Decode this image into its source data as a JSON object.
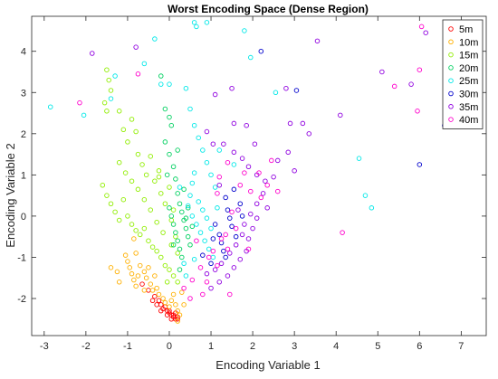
{
  "chart_data": {
    "type": "scatter",
    "title": "Worst Encoding Space (Dense Region)",
    "xlabel": "Encoding Variable 1",
    "ylabel": "Encoding Variable 2",
    "xlim": [
      -3.3,
      7.6
    ],
    "ylim": [
      -2.9,
      4.85
    ],
    "xticks": [
      -3,
      -2,
      -1,
      0,
      1,
      2,
      3,
      4,
      5,
      6,
      7
    ],
    "yticks": [
      -2,
      -1,
      0,
      1,
      2,
      3,
      4
    ],
    "grid": false,
    "legend_position": "top-right",
    "marker": "open-circle",
    "series": [
      {
        "name": "5m",
        "color": "#ff0000",
        "points": [
          [
            -0.65,
            -1.65
          ],
          [
            -0.5,
            -1.8
          ],
          [
            -0.35,
            -1.95
          ],
          [
            -0.25,
            -2.05
          ],
          [
            -0.2,
            -2.15
          ],
          [
            -0.1,
            -2.2
          ],
          [
            -0.05,
            -2.3
          ],
          [
            0.0,
            -2.35
          ],
          [
            0.05,
            -2.4
          ],
          [
            0.1,
            -2.45
          ],
          [
            0.15,
            -2.5
          ],
          [
            0.2,
            -2.5
          ],
          [
            -0.3,
            -2.15
          ],
          [
            -0.15,
            -2.25
          ],
          [
            0.0,
            -2.3
          ],
          [
            0.1,
            -2.4
          ],
          [
            0.2,
            -2.45
          ],
          [
            -0.4,
            -2.05
          ],
          [
            -0.05,
            -2.4
          ],
          [
            0.05,
            -2.5
          ],
          [
            -0.2,
            -2.3
          ],
          [
            0.15,
            -2.35
          ]
        ]
      },
      {
        "name": "10m",
        "color": "#ffb000",
        "points": [
          [
            -0.85,
            -0.55
          ],
          [
            -1.4,
            -1.25
          ],
          [
            -1.25,
            -1.35
          ],
          [
            -1.2,
            -1.6
          ],
          [
            -1.05,
            -0.95
          ],
          [
            -1.0,
            -1.1
          ],
          [
            -0.95,
            -1.25
          ],
          [
            -0.9,
            -1.4
          ],
          [
            -0.85,
            -1.55
          ],
          [
            -0.8,
            -1.7
          ],
          [
            -0.75,
            -1.45
          ],
          [
            -0.7,
            -1.2
          ],
          [
            -0.6,
            -1.35
          ],
          [
            -0.55,
            -1.5
          ],
          [
            -0.45,
            -1.65
          ],
          [
            -0.4,
            -1.8
          ],
          [
            -0.3,
            -1.75
          ],
          [
            -0.25,
            -1.9
          ],
          [
            -0.15,
            -2.0
          ],
          [
            -0.1,
            -2.1
          ],
          [
            0.0,
            -2.2
          ],
          [
            0.05,
            -2.05
          ],
          [
            0.1,
            -1.9
          ],
          [
            0.15,
            -2.15
          ],
          [
            0.2,
            -2.3
          ],
          [
            0.25,
            -2.4
          ],
          [
            0.3,
            -1.85
          ],
          [
            0.35,
            -2.15
          ],
          [
            0.2,
            -2.55
          ],
          [
            -0.6,
            -1.8
          ],
          [
            -0.35,
            -1.45
          ],
          [
            -0.5,
            -1.25
          ],
          [
            -0.8,
            -0.9
          ]
        ]
      },
      {
        "name": "15m",
        "color": "#90ee00",
        "points": [
          [
            -1.5,
            3.55
          ],
          [
            -1.45,
            3.3
          ],
          [
            -1.4,
            3.05
          ],
          [
            -1.55,
            2.75
          ],
          [
            -1.5,
            2.55
          ],
          [
            -1.2,
            2.55
          ],
          [
            -1.1,
            2.1
          ],
          [
            -1.0,
            1.8
          ],
          [
            -0.9,
            2.35
          ],
          [
            -0.8,
            2.05
          ],
          [
            -0.75,
            1.5
          ],
          [
            -0.65,
            1.25
          ],
          [
            -0.55,
            1.0
          ],
          [
            -0.45,
            1.45
          ],
          [
            -0.35,
            0.85
          ],
          [
            -0.25,
            1.1
          ],
          [
            -0.2,
            0.55
          ],
          [
            -0.1,
            0.3
          ],
          [
            0.0,
            0.7
          ],
          [
            0.05,
            -0.1
          ],
          [
            -1.6,
            0.75
          ],
          [
            -1.5,
            0.5
          ],
          [
            -1.4,
            0.3
          ],
          [
            -1.3,
            0.1
          ],
          [
            -1.2,
            -0.1
          ],
          [
            -1.1,
            0.4
          ],
          [
            -1.0,
            0.0
          ],
          [
            -0.9,
            -0.2
          ],
          [
            -0.8,
            -0.35
          ],
          [
            -0.7,
            -0.45
          ],
          [
            -0.6,
            -0.3
          ],
          [
            -0.5,
            -0.6
          ],
          [
            -0.4,
            -0.75
          ],
          [
            -0.3,
            -0.85
          ],
          [
            -0.2,
            -1.0
          ],
          [
            -0.1,
            -1.2
          ],
          [
            0.0,
            -1.3
          ],
          [
            0.1,
            -1.45
          ],
          [
            0.2,
            -1.6
          ],
          [
            0.05,
            -0.7
          ],
          [
            -0.15,
            -0.4
          ],
          [
            -0.3,
            -0.15
          ],
          [
            -0.45,
            0.15
          ],
          [
            -0.6,
            0.4
          ],
          [
            -0.75,
            0.65
          ],
          [
            -0.9,
            0.85
          ],
          [
            -1.05,
            1.05
          ],
          [
            -1.2,
            1.3
          ],
          [
            -0.25,
            0.95
          ],
          [
            0.1,
            0.15
          ],
          [
            0.15,
            -0.5
          ],
          [
            0.2,
            -0.9
          ],
          [
            -0.05,
            -1.6
          ]
        ]
      },
      {
        "name": "20m",
        "color": "#00d060",
        "points": [
          [
            -0.2,
            3.4
          ],
          [
            -0.1,
            2.6
          ],
          [
            0.0,
            2.4
          ],
          [
            0.05,
            2.2
          ],
          [
            -0.1,
            1.8
          ],
          [
            0.0,
            1.5
          ],
          [
            0.1,
            1.2
          ],
          [
            0.15,
            0.9
          ],
          [
            0.2,
            0.55
          ],
          [
            0.25,
            0.3
          ],
          [
            0.3,
            0.1
          ],
          [
            0.35,
            -0.1
          ],
          [
            0.4,
            -0.3
          ],
          [
            0.45,
            -0.5
          ],
          [
            0.5,
            -0.7
          ],
          [
            0.0,
            0.2
          ],
          [
            0.05,
            0.0
          ],
          [
            0.1,
            -0.2
          ],
          [
            0.15,
            -0.4
          ],
          [
            0.2,
            -0.6
          ],
          [
            0.25,
            -0.8
          ],
          [
            0.3,
            -1.0
          ],
          [
            -0.05,
            1.0
          ],
          [
            0.2,
            1.6
          ],
          [
            0.35,
            0.65
          ],
          [
            0.45,
            0.2
          ],
          [
            0.55,
            -0.25
          ],
          [
            0.1,
            -0.7
          ],
          [
            0.25,
            -1.3
          ],
          [
            0.4,
            -0.05
          ]
        ]
      },
      {
        "name": "25m",
        "color": "#00e8e8",
        "points": [
          [
            -2.85,
            2.65
          ],
          [
            -2.05,
            2.45
          ],
          [
            -1.4,
            2.85
          ],
          [
            -1.3,
            3.4
          ],
          [
            -0.6,
            3.7
          ],
          [
            -0.35,
            4.3
          ],
          [
            -0.2,
            3.2
          ],
          [
            0.0,
            3.2
          ],
          [
            0.4,
            3.1
          ],
          [
            0.6,
            4.7
          ],
          [
            0.65,
            4.6
          ],
          [
            0.9,
            4.7
          ],
          [
            1.8,
            4.5
          ],
          [
            1.95,
            3.85
          ],
          [
            2.55,
            3.0
          ],
          [
            0.5,
            2.6
          ],
          [
            0.6,
            2.2
          ],
          [
            0.7,
            1.9
          ],
          [
            0.8,
            1.6
          ],
          [
            0.9,
            1.3
          ],
          [
            1.0,
            1.0
          ],
          [
            1.1,
            0.7
          ],
          [
            0.6,
            1.05
          ],
          [
            0.55,
            0.8
          ],
          [
            0.5,
            0.5
          ],
          [
            0.45,
            0.25
          ],
          [
            0.55,
            0.0
          ],
          [
            0.65,
            -0.2
          ],
          [
            0.75,
            -0.4
          ],
          [
            0.85,
            -0.6
          ],
          [
            0.95,
            -0.8
          ],
          [
            1.05,
            -1.0
          ],
          [
            0.7,
            0.35
          ],
          [
            0.8,
            0.15
          ],
          [
            0.9,
            -0.05
          ],
          [
            1.0,
            -0.3
          ],
          [
            1.15,
            0.2
          ],
          [
            0.35,
            -1.15
          ],
          [
            0.4,
            -1.45
          ],
          [
            1.55,
            1.25
          ],
          [
            1.2,
            1.6
          ],
          [
            4.55,
            1.4
          ],
          [
            4.7,
            0.5
          ],
          [
            4.85,
            0.2
          ],
          [
            0.25,
            0.7
          ],
          [
            0.6,
            -1.05
          ]
        ]
      },
      {
        "name": "30m",
        "color": "#0000cc",
        "points": [
          [
            2.2,
            4.0
          ],
          [
            3.05,
            3.05
          ],
          [
            6.0,
            1.25
          ],
          [
            6.6,
            2.2
          ],
          [
            1.35,
            0.45
          ],
          [
            1.4,
            0.15
          ],
          [
            1.45,
            -0.05
          ],
          [
            1.5,
            -0.25
          ],
          [
            1.2,
            -0.45
          ],
          [
            1.25,
            -0.65
          ],
          [
            1.3,
            -0.85
          ],
          [
            1.05,
            -0.55
          ],
          [
            1.1,
            -0.2
          ],
          [
            1.7,
            0.3
          ],
          [
            1.75,
            0.0
          ],
          [
            1.6,
            -0.5
          ],
          [
            1.0,
            -1.15
          ],
          [
            0.8,
            -0.95
          ],
          [
            1.55,
            0.65
          ],
          [
            1.35,
            -1.0
          ]
        ]
      },
      {
        "name": "35m",
        "color": "#9000e0",
        "points": [
          [
            -1.85,
            3.95
          ],
          [
            -0.8,
            4.1
          ],
          [
            2.8,
            3.1
          ],
          [
            3.55,
            4.25
          ],
          [
            5.1,
            3.5
          ],
          [
            5.8,
            3.2
          ],
          [
            6.15,
            4.45
          ],
          [
            2.9,
            2.25
          ],
          [
            3.2,
            2.25
          ],
          [
            3.35,
            2.0
          ],
          [
            2.85,
            1.55
          ],
          [
            2.6,
            1.35
          ],
          [
            3.0,
            1.1
          ],
          [
            2.5,
            0.95
          ],
          [
            2.3,
            0.85
          ],
          [
            2.1,
            1.0
          ],
          [
            1.9,
            1.2
          ],
          [
            1.75,
            1.4
          ],
          [
            1.55,
            1.55
          ],
          [
            1.3,
            1.75
          ],
          [
            1.05,
            1.75
          ],
          [
            0.9,
            2.05
          ],
          [
            1.1,
            2.95
          ],
          [
            1.5,
            3.1
          ],
          [
            1.55,
            2.25
          ],
          [
            1.85,
            2.2
          ],
          [
            2.05,
            1.75
          ],
          [
            2.25,
            0.55
          ],
          [
            2.1,
            0.3
          ],
          [
            1.95,
            0.05
          ],
          [
            2.0,
            -0.3
          ],
          [
            1.9,
            -0.55
          ],
          [
            1.85,
            -0.85
          ],
          [
            1.7,
            -1.05
          ],
          [
            1.55,
            -1.25
          ],
          [
            1.4,
            -1.45
          ],
          [
            1.2,
            -1.6
          ],
          [
            1.0,
            -1.75
          ],
          [
            0.9,
            -1.4
          ],
          [
            1.1,
            -1.3
          ],
          [
            1.25,
            -1.15
          ],
          [
            1.45,
            -0.9
          ],
          [
            1.6,
            -0.7
          ],
          [
            1.75,
            -0.45
          ],
          [
            1.8,
            -0.2
          ],
          [
            1.65,
            0.15
          ],
          [
            1.2,
            0.75
          ],
          [
            4.1,
            2.45
          ],
          [
            2.1,
            -0.05
          ],
          [
            2.35,
            0.2
          ]
        ]
      },
      {
        "name": "40m",
        "color": "#ff00cc",
        "points": [
          [
            -2.15,
            2.75
          ],
          [
            -0.75,
            3.45
          ],
          [
            6.05,
            4.6
          ],
          [
            6.0,
            3.55
          ],
          [
            5.4,
            3.15
          ],
          [
            4.15,
            -0.4
          ],
          [
            5.95,
            2.55
          ],
          [
            2.15,
            1.05
          ],
          [
            2.35,
            0.75
          ],
          [
            2.2,
            0.45
          ],
          [
            1.95,
            0.6
          ],
          [
            1.7,
            0.75
          ],
          [
            1.8,
            1.05
          ],
          [
            1.4,
            1.3
          ],
          [
            1.2,
            0.95
          ],
          [
            1.5,
            0.1
          ],
          [
            1.6,
            -0.3
          ],
          [
            1.35,
            -0.45
          ],
          [
            1.4,
            -0.8
          ],
          [
            1.15,
            -1.2
          ],
          [
            0.95,
            -1.0
          ],
          [
            0.75,
            -1.25
          ],
          [
            0.55,
            -1.55
          ],
          [
            0.35,
            -1.75
          ],
          [
            0.9,
            -1.6
          ],
          [
            1.05,
            -0.85
          ],
          [
            1.25,
            -0.55
          ],
          [
            0.5,
            -2.0
          ],
          [
            0.65,
            -0.6
          ],
          [
            1.15,
            0.55
          ],
          [
            2.45,
            1.35
          ],
          [
            2.6,
            0.6
          ],
          [
            1.9,
            -0.8
          ],
          [
            1.45,
            -1.9
          ],
          [
            0.8,
            -1.9
          ]
        ]
      }
    ]
  }
}
